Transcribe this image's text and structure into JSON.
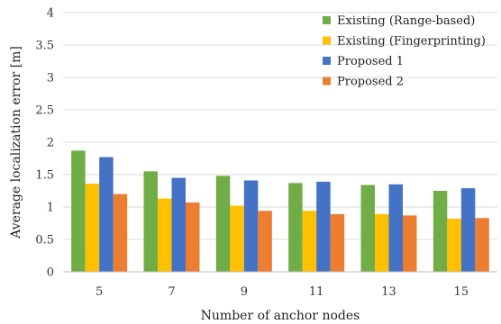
{
  "chart_data": {
    "type": "bar",
    "title": "",
    "xlabel": "Number of anchor nodes",
    "ylabel": "Average localization error [m]",
    "categories": [
      "5",
      "7",
      "9",
      "11",
      "13",
      "15"
    ],
    "yticks": [
      "0",
      "0.5",
      "1",
      "1.5",
      "2",
      "2.5",
      "3",
      "3.5",
      "4"
    ],
    "ylim": [
      0,
      4
    ],
    "grid": true,
    "legend_position": "top-right",
    "series": [
      {
        "name": "Existing (Range-based)",
        "color": "#70ad47",
        "values": [
          1.87,
          1.55,
          1.48,
          1.37,
          1.34,
          1.25
        ]
      },
      {
        "name": "Existing (Fingerprinting)",
        "color": "#ffc000",
        "values": [
          1.36,
          1.13,
          1.02,
          0.94,
          0.89,
          0.82
        ]
      },
      {
        "name": "Proposed 1",
        "color": "#4472c4",
        "values": [
          1.77,
          1.45,
          1.41,
          1.39,
          1.35,
          1.29
        ]
      },
      {
        "name": "Proposed 2",
        "color": "#ed7d31",
        "values": [
          1.2,
          1.07,
          0.94,
          0.89,
          0.87,
          0.83
        ]
      }
    ]
  }
}
